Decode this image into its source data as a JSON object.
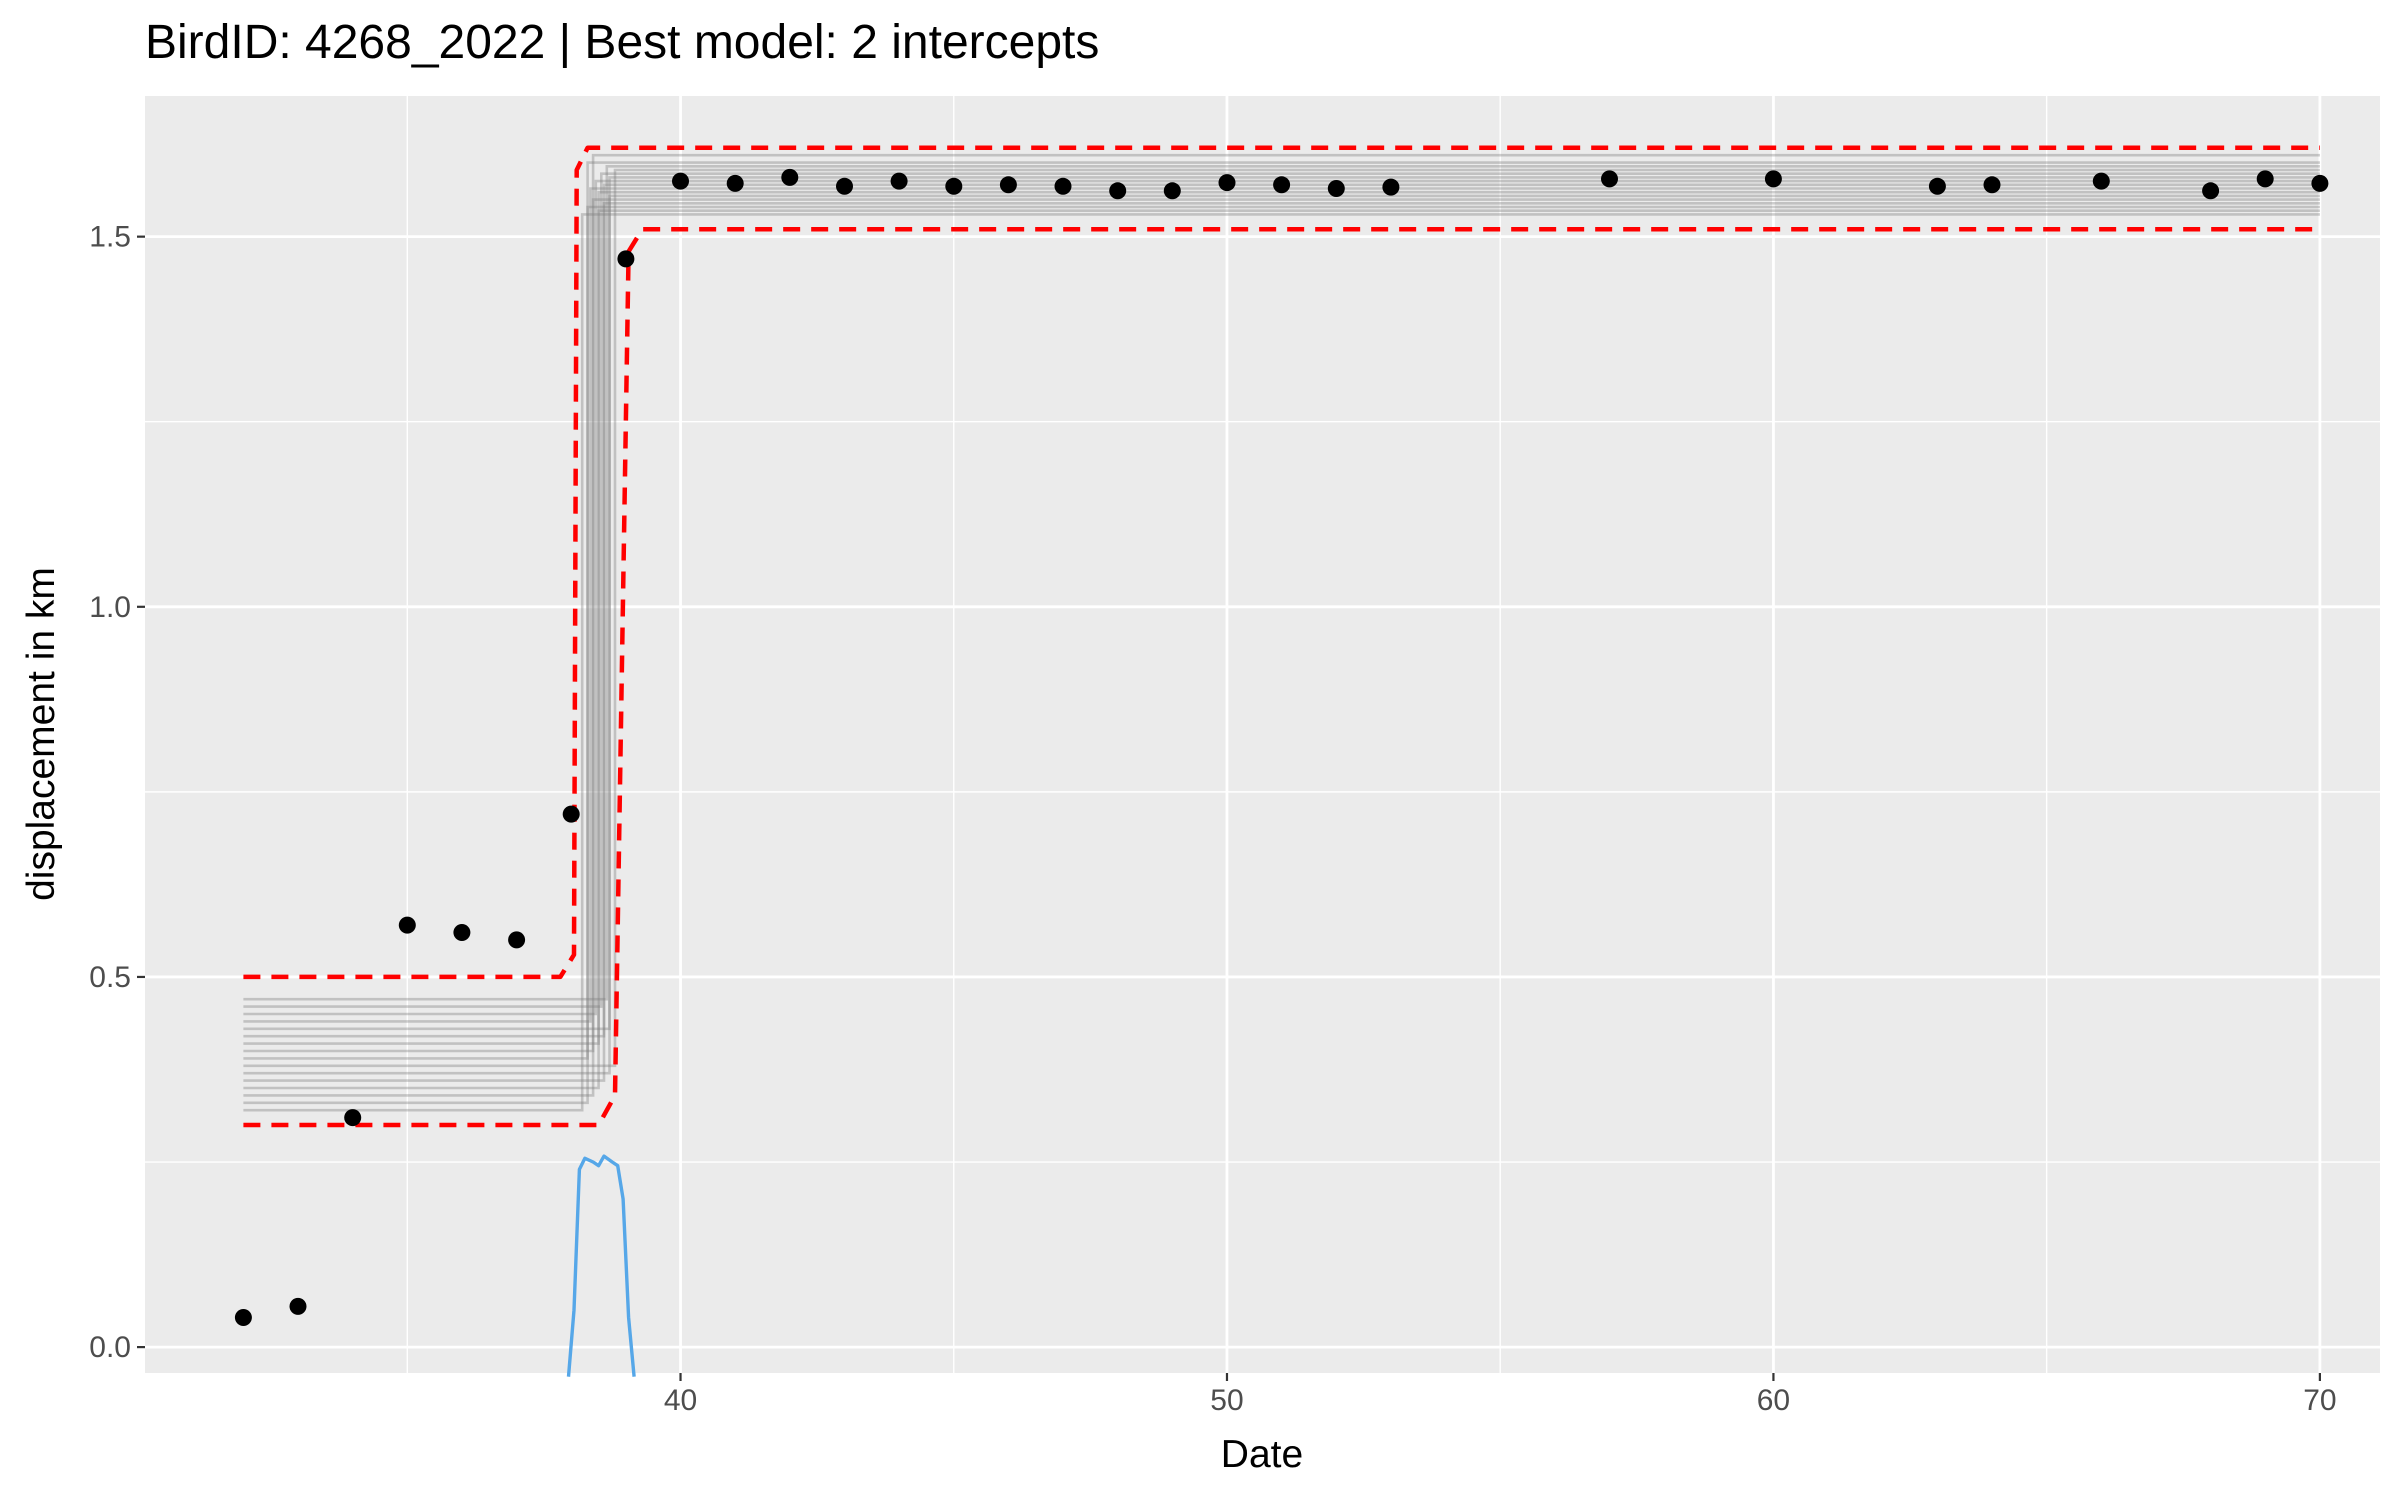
{
  "chart_data": {
    "type": "scatter",
    "title": "BirdID: 4268_2022 | Best model: 2 intercepts",
    "xlabel": "Date",
    "ylabel": "displacement in km",
    "xlim": [
      30.2,
      71.1
    ],
    "ylim": [
      -0.035,
      1.69
    ],
    "x_ticks": [
      40,
      50,
      60,
      70
    ],
    "y_ticks": [
      0.0,
      0.5,
      1.0,
      1.5
    ],
    "x_tick_labels": [
      "40",
      "50",
      "60",
      "70"
    ],
    "y_tick_labels": [
      "0.0",
      "0.5",
      "1.0",
      "1.5"
    ],
    "grid": true,
    "background": "#ebebeb",
    "colors": {
      "points": "#000000",
      "model_lines": "#7f7f7f",
      "credible_band": "#ff0000",
      "change_point_density": "#56a7e8"
    },
    "observations": {
      "x": [
        32,
        33,
        34,
        35,
        36,
        37,
        38,
        39,
        40,
        41,
        42,
        43,
        44,
        45,
        46,
        47,
        48,
        49,
        50,
        51,
        52,
        53,
        57,
        60,
        63,
        64,
        66,
        68,
        69,
        70
      ],
      "y": [
        0.04,
        0.055,
        0.31,
        0.57,
        0.56,
        0.55,
        0.72,
        1.47,
        1.575,
        1.572,
        1.58,
        1.568,
        1.575,
        1.568,
        1.57,
        1.568,
        1.562,
        1.562,
        1.573,
        1.57,
        1.565,
        1.567,
        1.578,
        1.578,
        1.568,
        1.57,
        1.575,
        1.562,
        1.578,
        1.572
      ]
    },
    "model_draws": {
      "x_start": 32,
      "x_end": 70,
      "intercept_1": [
        0.32,
        0.33,
        0.34,
        0.35,
        0.36,
        0.37,
        0.38,
        0.39,
        0.4,
        0.41,
        0.42,
        0.43,
        0.44,
        0.45,
        0.46,
        0.47
      ],
      "intercept_2": [
        1.53,
        1.54,
        1.55,
        1.56,
        1.57,
        1.58,
        1.59,
        1.6,
        1.61,
        1.535,
        1.545,
        1.555,
        1.565,
        1.575,
        1.585,
        1.595
      ],
      "change_point": [
        38.2,
        38.3,
        38.4,
        38.5,
        38.6,
        38.7,
        38.8,
        38.3,
        38.4,
        38.5,
        38.6,
        38.7,
        38.35,
        38.45,
        38.55,
        38.65
      ]
    },
    "credible_band": {
      "lower": [
        [
          32,
          0.3
        ],
        [
          38.5,
          0.3
        ],
        [
          38.8,
          0.34
        ],
        [
          39.05,
          1.48
        ],
        [
          39.3,
          1.51
        ],
        [
          70,
          1.51
        ]
      ],
      "upper": [
        [
          32,
          0.5
        ],
        [
          37.8,
          0.5
        ],
        [
          38.05,
          0.53
        ],
        [
          38.1,
          1.59
        ],
        [
          38.3,
          1.62
        ],
        [
          70,
          1.62
        ]
      ]
    },
    "change_point_density": {
      "x": [
        37.95,
        38.05,
        38.15,
        38.25,
        38.4,
        38.5,
        38.6,
        38.75,
        38.85,
        38.95,
        39.05,
        39.15
      ],
      "y": [
        -0.04,
        0.05,
        0.24,
        0.255,
        0.25,
        0.245,
        0.258,
        0.25,
        0.245,
        0.2,
        0.04,
        -0.04
      ]
    }
  }
}
